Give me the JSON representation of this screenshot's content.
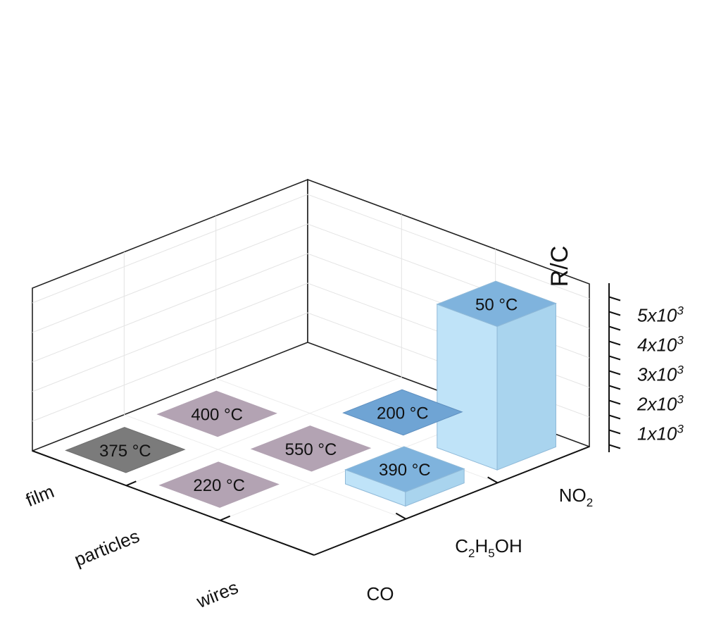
{
  "chart_data": {
    "type": "bar",
    "dimension": "3d",
    "ylabel": "R/C",
    "zlim": [
      0,
      5000
    ],
    "ztick_labels": [
      {
        "mantissa": "1x10",
        "exp": "3"
      },
      {
        "mantissa": "2x10",
        "exp": "3"
      },
      {
        "mantissa": "3x10",
        "exp": "3"
      },
      {
        "mantissa": "4x10",
        "exp": "3"
      },
      {
        "mantissa": "5x10",
        "exp": "3"
      }
    ],
    "morphologies": [
      "film",
      "particles",
      "wires"
    ],
    "gases": [
      {
        "parts": [
          {
            "t": "CO",
            "sub": false
          }
        ]
      },
      {
        "parts": [
          {
            "t": "C",
            "sub": false
          },
          {
            "t": "2",
            "sub": true
          },
          {
            "t": "H",
            "sub": false
          },
          {
            "t": "5",
            "sub": true
          },
          {
            "t": "OH",
            "sub": false
          }
        ]
      },
      {
        "parts": [
          {
            "t": "NO",
            "sub": false
          },
          {
            "t": "2",
            "sub": true
          }
        ]
      }
    ],
    "bars": [
      {
        "morphology": "film",
        "gas": "NO2",
        "value": 4850,
        "label": "50 °C",
        "color": "light-blue"
      },
      {
        "morphology": "film",
        "gas": "C2H5OH",
        "value": 5,
        "label": "200 °C",
        "color": "blue"
      },
      {
        "morphology": "particles",
        "gas": "NO2",
        "value": 480,
        "label": "390 °C",
        "color": "light-blue"
      },
      {
        "morphology": "particles",
        "gas": "CO",
        "value": 5,
        "label": "400 °C",
        "color": "mauve"
      },
      {
        "morphology": "particles",
        "gas": "C2H5OH",
        "value": 5,
        "label": "550 °C",
        "color": "mauve"
      },
      {
        "morphology": "wires",
        "gas": "C2H5OH",
        "value": 5,
        "label": "220 °C",
        "color": "mauve"
      },
      {
        "morphology": "wires",
        "gas": "CO",
        "value": 5,
        "label": "375 °C",
        "color": "gray"
      }
    ],
    "grid": true
  },
  "colors": {
    "light-blue": {
      "top": "#7fb3dd",
      "front": "#bfe3f8",
      "side": "#a9d4ee",
      "edge": "#8fb9d8"
    },
    "blue": {
      "top": "#6fa4d4",
      "front": "#9ec6e6",
      "side": "#8ab8de",
      "edge": "#5f8fbf"
    },
    "mauve": {
      "top": "#b3a3b3",
      "front": "#c6b8c6",
      "side": "#bcaebc",
      "edge": "#b3a3b3"
    },
    "gray": {
      "top": "#7b7b7b",
      "front": "#8f8f8f",
      "side": "#858585",
      "edge": "#6f6f6f"
    }
  }
}
